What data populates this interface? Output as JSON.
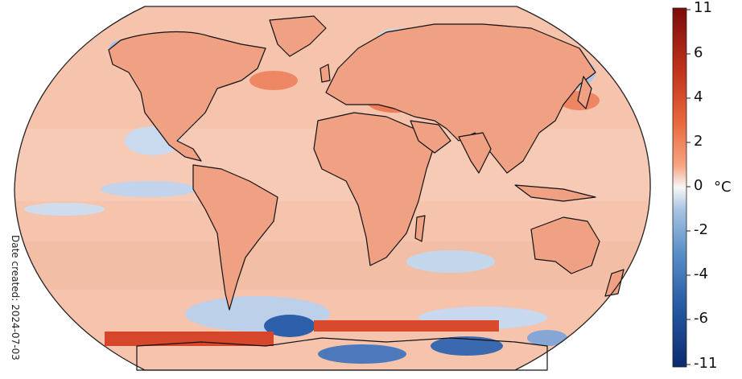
{
  "map": {
    "date_created": "Date created: 2024-07-03",
    "unit": "°C",
    "colorbar": {
      "ticks": [
        "11",
        "6",
        "4",
        "2",
        "0",
        "-2",
        "-4",
        "-6",
        "-11"
      ],
      "colors": [
        "#7a0b0b",
        "#c2351c",
        "#e9683d",
        "#f6a583",
        "#f7f7f7",
        "#a9c5e3",
        "#5b8fc8",
        "#2a5ea6",
        "#0b2a6e"
      ]
    },
    "palette": {
      "land_warm": "#f0a183",
      "ocean_warm": "#f6c3ad",
      "cold": "#b7cde8",
      "strong_cold": "#2e5faa",
      "strong_warm": "#c9361d",
      "coastline": "#111111"
    }
  }
}
